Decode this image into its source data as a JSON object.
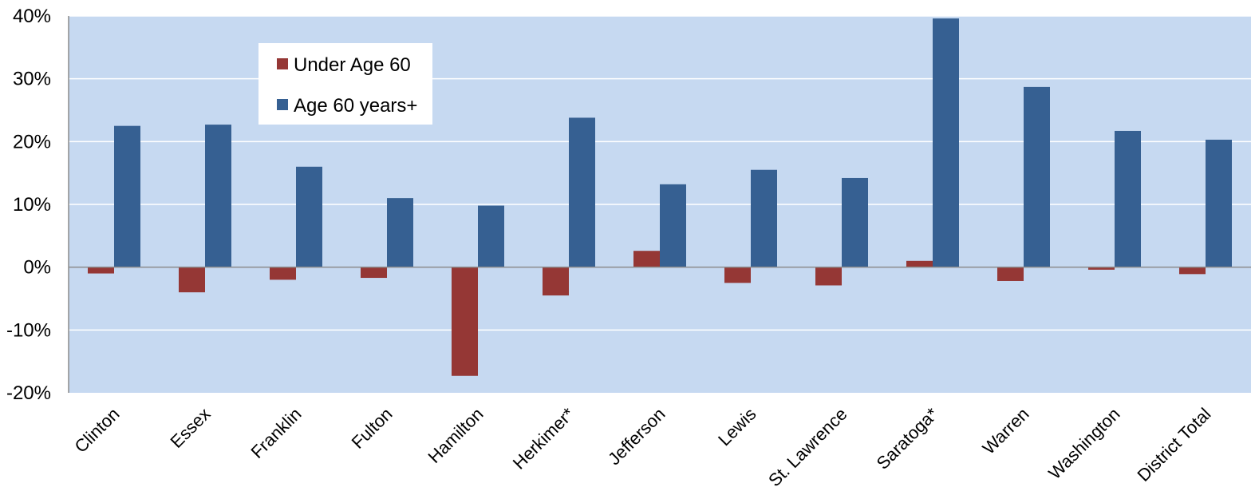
{
  "chart_data": {
    "type": "bar",
    "categories": [
      "Clinton",
      "Essex",
      "Franklin",
      "Fulton",
      "Hamilton",
      "Herkimer*",
      "Jefferson",
      "Lewis",
      "St. Lawrence",
      "Saratoga*",
      "Warren",
      "Washington",
      "District Total"
    ],
    "series": [
      {
        "name": "Under Age 60",
        "color": "#953735",
        "values": [
          -1,
          -4,
          -2,
          -1.7,
          -17.3,
          -4.5,
          2.6,
          -2.5,
          -2.9,
          1,
          -2.2,
          -0.4,
          -1.1
        ]
      },
      {
        "name": "Age 60 years+",
        "color": "#366092",
        "values": [
          22.5,
          22.7,
          16,
          11,
          9.8,
          23.8,
          13.2,
          15.5,
          14.2,
          39.6,
          28.7,
          21.7,
          20.3
        ]
      }
    ],
    "ylim": [
      -20,
      40
    ],
    "yticks": [
      -20,
      -10,
      0,
      10,
      20,
      30,
      40
    ],
    "ytick_labels": [
      "-20%",
      "-10%",
      "0%",
      "10%",
      "20%",
      "30%",
      "40%"
    ],
    "grid": true,
    "plot_background": "#c6d9f1",
    "legend_position": "top-left"
  }
}
